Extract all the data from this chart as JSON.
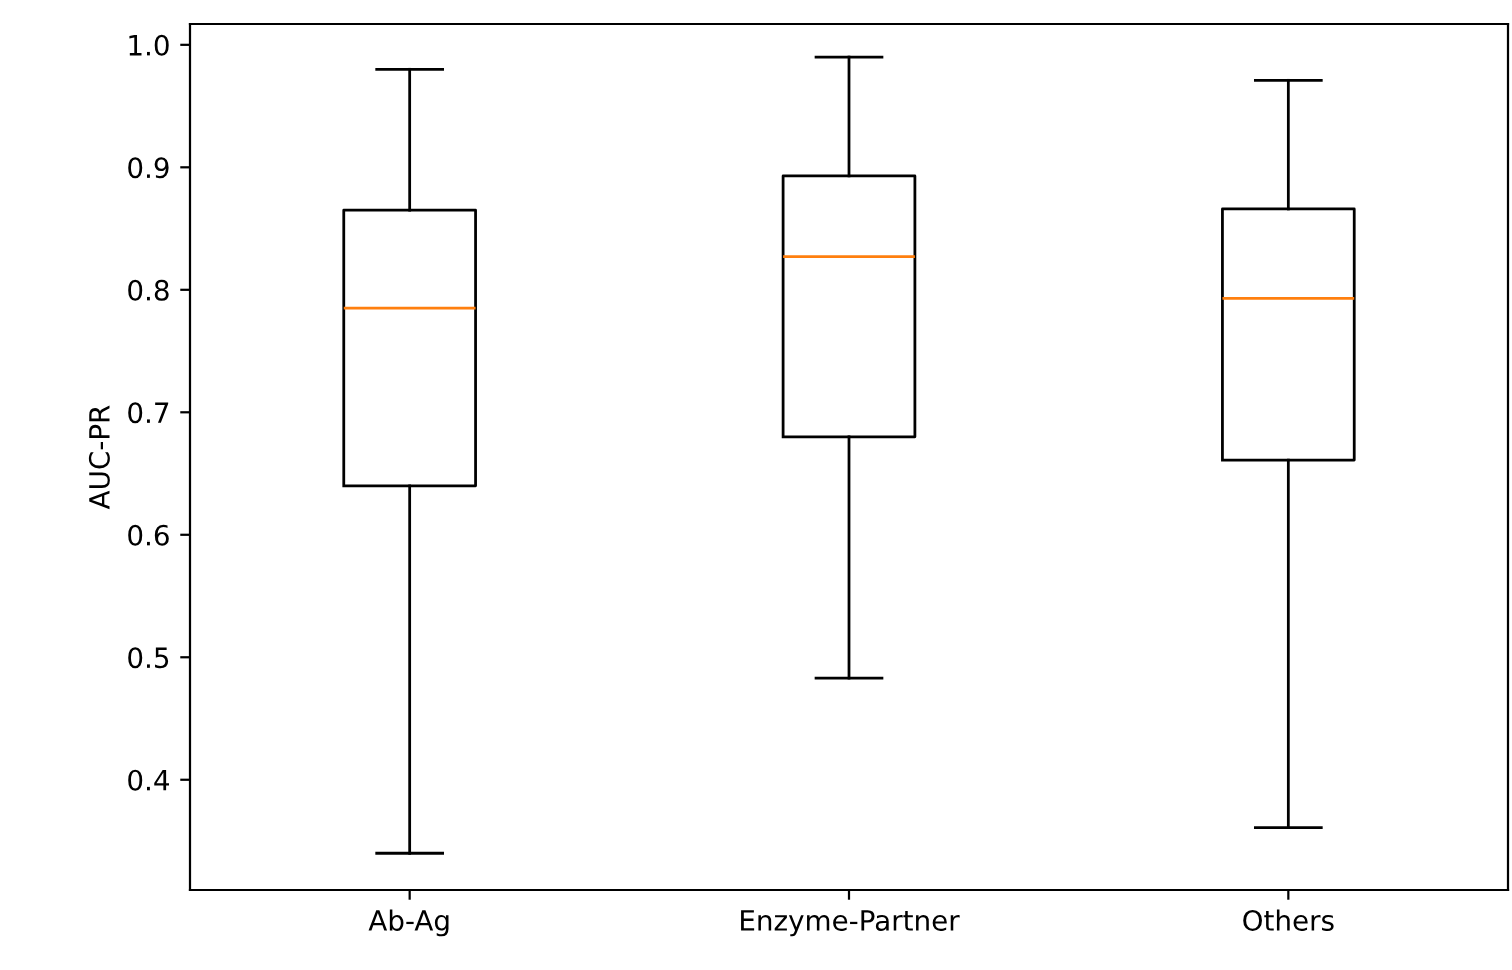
{
  "chart_data": {
    "type": "box",
    "ylabel": "AUC-PR",
    "categories": [
      "Ab-Ag",
      "Enzyme-Partner",
      "Others"
    ],
    "boxes": [
      {
        "low": 0.34,
        "q1": 0.64,
        "median": 0.785,
        "q3": 0.865,
        "high": 0.98
      },
      {
        "low": 0.483,
        "q1": 0.68,
        "median": 0.827,
        "q3": 0.893,
        "high": 0.99
      },
      {
        "low": 0.361,
        "q1": 0.661,
        "median": 0.793,
        "q3": 0.866,
        "high": 0.971
      }
    ],
    "ylim": [
      0.31,
      1.017
    ],
    "yticks": [
      0.4,
      0.5,
      0.6,
      0.7,
      0.8,
      0.9,
      {
        "value": 1,
        "label": "1.0"
      }
    ],
    "grid": false
  }
}
